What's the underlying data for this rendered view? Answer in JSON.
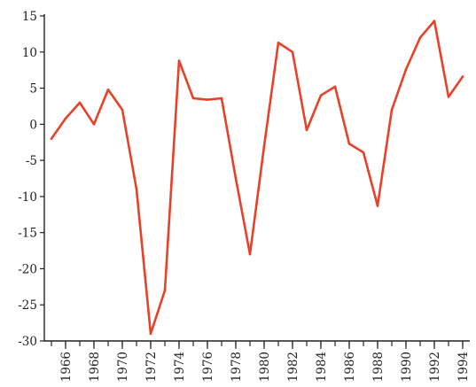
{
  "chart_data": {
    "type": "line",
    "title": "",
    "xlabel": "",
    "ylabel": "",
    "xlim": [
      1964.5,
      1994.5
    ],
    "ylim": [
      -30,
      15
    ],
    "y_ticks": [
      15,
      10,
      5,
      0,
      -5,
      -10,
      -15,
      -20,
      -25,
      -30
    ],
    "y_tick_labels": [
      "15",
      "10",
      "5",
      "0",
      "-5",
      "-10",
      "-15",
      "-20",
      "-25",
      "-30"
    ],
    "x_ticks": [
      1966,
      1968,
      1970,
      1972,
      1974,
      1976,
      1978,
      1980,
      1982,
      1984,
      1986,
      1988,
      1990,
      1992,
      1994
    ],
    "x_tick_labels": [
      "1966",
      "1968",
      "1970",
      "1972",
      "1974",
      "1976",
      "1978",
      "1980",
      "1982",
      "1984",
      "1986",
      "1988",
      "1990",
      "1992",
      "1994"
    ],
    "x_minor_step": 1,
    "grid": false,
    "legend": "none",
    "series": [
      {
        "color": "#e8412a",
        "x": [
          1965,
          1966,
          1967,
          1968,
          1969,
          1970,
          1971,
          1972,
          1973,
          1974,
          1975,
          1976,
          1977,
          1978,
          1979,
          1980,
          1981,
          1982,
          1983,
          1984,
          1985,
          1986,
          1987,
          1988,
          1989,
          1990,
          1991,
          1992,
          1993,
          1994
        ],
        "y": [
          -2,
          0.8,
          3,
          0,
          4.8,
          2,
          -9,
          -29,
          -23,
          8.8,
          3.6,
          3.4,
          3.6,
          -7.5,
          -18,
          -3,
          11.3,
          10,
          -0.8,
          4,
          5.2,
          -2.7,
          -3.9,
          -11.3,
          2,
          7.6,
          12,
          14.3,
          3.8,
          6.6
        ]
      }
    ]
  }
}
